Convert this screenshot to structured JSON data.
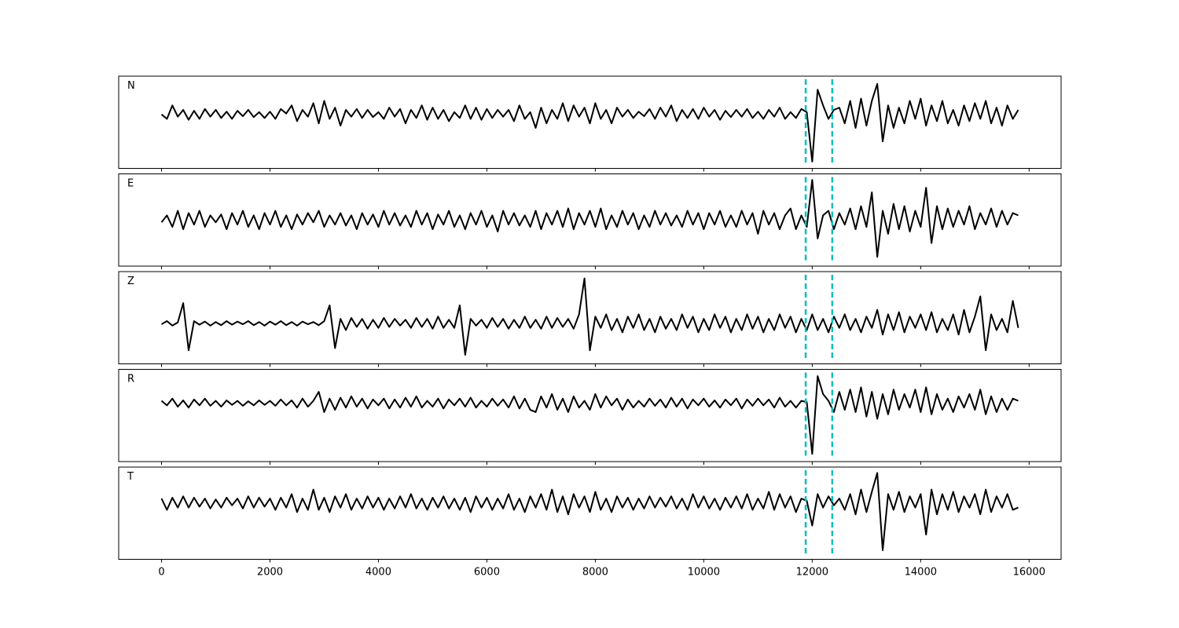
{
  "chart_data": {
    "type": "line",
    "subplots": true,
    "x": [
      0,
      100,
      200,
      300,
      400,
      500,
      600,
      700,
      800,
      900,
      1000,
      1100,
      1200,
      1300,
      1400,
      1500,
      1600,
      1700,
      1800,
      1900,
      2000,
      2100,
      2200,
      2300,
      2400,
      2500,
      2600,
      2700,
      2800,
      2900,
      3000,
      3100,
      3200,
      3300,
      3400,
      3500,
      3600,
      3700,
      3800,
      3900,
      4000,
      4100,
      4200,
      4300,
      4400,
      4500,
      4600,
      4700,
      4800,
      4900,
      5000,
      5100,
      5200,
      5300,
      5400,
      5500,
      5600,
      5700,
      5800,
      5900,
      6000,
      6100,
      6200,
      6300,
      6400,
      6500,
      6600,
      6700,
      6800,
      6900,
      7000,
      7100,
      7200,
      7300,
      7400,
      7500,
      7600,
      7700,
      7800,
      7900,
      8000,
      8100,
      8200,
      8300,
      8400,
      8500,
      8600,
      8700,
      8800,
      8900,
      9000,
      9100,
      9200,
      9300,
      9400,
      9500,
      9600,
      9700,
      9800,
      9900,
      10000,
      10100,
      10200,
      10300,
      10400,
      10500,
      10600,
      10700,
      10800,
      10900,
      11000,
      11100,
      11200,
      11300,
      11400,
      11500,
      11600,
      11700,
      11800,
      11900,
      12000,
      12100,
      12200,
      12300,
      12400,
      12500,
      12600,
      12700,
      12800,
      12900,
      13000,
      13100,
      13200,
      13300,
      13400,
      13500,
      13600,
      13700,
      13800,
      13900,
      14000,
      14100,
      14200,
      14300,
      14400,
      14500,
      14600,
      14700,
      14800,
      14900,
      15000,
      15100,
      15200,
      15300,
      15400,
      15500,
      15600,
      15700,
      15800
    ],
    "xlim": [
      -790,
      16590
    ],
    "xticks": [
      0,
      2000,
      4000,
      6000,
      8000,
      10000,
      12000,
      14000,
      16000
    ],
    "markers": [
      11880,
      12370
    ],
    "marker_color": "#00bfbf",
    "series": [
      {
        "name": "N",
        "color": "#000000",
        "ylim": [
          -1.2,
          0.85
        ],
        "values": [
          0,
          -0.1,
          0.2,
          -0.05,
          0.1,
          -0.12,
          0.08,
          -0.1,
          0.12,
          -0.05,
          0.1,
          -0.08,
          0.06,
          -0.1,
          0.08,
          -0.04,
          0.1,
          -0.06,
          0.05,
          -0.08,
          0.06,
          -0.1,
          0.12,
          0.02,
          0.2,
          -0.15,
          0.1,
          -0.05,
          0.25,
          -0.2,
          0.3,
          -0.1,
          0.15,
          -0.25,
          0.1,
          -0.05,
          0.12,
          -0.08,
          0.1,
          -0.06,
          0.05,
          -0.1,
          0.15,
          -0.05,
          0.12,
          -0.2,
          0.1,
          -0.08,
          0.2,
          -0.12,
          0.15,
          -0.1,
          0.1,
          -0.15,
          0.05,
          -0.08,
          0.2,
          -0.1,
          0.15,
          -0.12,
          0.12,
          -0.08,
          0.1,
          -0.05,
          0.1,
          -0.15,
          0.2,
          -0.1,
          0.05,
          -0.3,
          0.15,
          -0.2,
          0.1,
          -0.1,
          0.25,
          -0.15,
          0.2,
          -0.05,
          0.15,
          -0.2,
          0.25,
          -0.1,
          0.1,
          -0.2,
          0.15,
          -0.05,
          0.1,
          -0.08,
          0.06,
          -0.04,
          0.12,
          -0.1,
          0.15,
          -0.05,
          0.2,
          -0.15,
          0.1,
          -0.08,
          0.12,
          -0.1,
          0.15,
          -0.05,
          0.1,
          -0.12,
          0.08,
          -0.06,
          0.1,
          -0.05,
          0.12,
          -0.08,
          0.06,
          -0.1,
          0.1,
          -0.05,
          0.15,
          -0.1,
          0.05,
          -0.08,
          0.12,
          0.05,
          -1.05,
          0.55,
          0.2,
          -0.1,
          0.1,
          0.15,
          -0.2,
          0.3,
          -0.3,
          0.35,
          -0.25,
          0.3,
          0.68,
          -0.6,
          0.2,
          -0.3,
          0.15,
          -0.2,
          0.3,
          -0.1,
          0.35,
          -0.25,
          0.2,
          -0.15,
          0.3,
          -0.2,
          0.1,
          -0.25,
          0.2,
          -0.15,
          0.25,
          -0.1,
          0.3,
          -0.2,
          0.15,
          -0.25,
          0.2,
          -0.1,
          0.1
        ]
      },
      {
        "name": "E",
        "color": "#000000",
        "ylim": [
          -1.0,
          1.0
        ],
        "values": [
          -0.05,
          0.1,
          -0.15,
          0.2,
          -0.2,
          0.15,
          -0.1,
          0.2,
          -0.15,
          0.1,
          -0.05,
          0.12,
          -0.2,
          0.15,
          -0.1,
          0.2,
          -0.15,
          0.1,
          -0.2,
          0.15,
          -0.1,
          0.2,
          -0.15,
          0.1,
          -0.2,
          0.12,
          -0.1,
          0.15,
          -0.05,
          0.2,
          -0.15,
          0.1,
          -0.1,
          0.15,
          -0.12,
          0.1,
          -0.2,
          0.15,
          -0.1,
          0.12,
          -0.15,
          0.2,
          -0.1,
          0.15,
          -0.12,
          0.1,
          -0.15,
          0.2,
          -0.1,
          0.15,
          -0.2,
          0.12,
          -0.1,
          0.2,
          -0.15,
          0.1,
          -0.2,
          0.15,
          -0.1,
          0.2,
          -0.15,
          0.1,
          -0.25,
          0.2,
          -0.1,
          0.15,
          -0.12,
          0.1,
          -0.15,
          0.2,
          -0.2,
          0.15,
          -0.1,
          0.2,
          -0.15,
          0.25,
          -0.2,
          0.15,
          -0.1,
          0.2,
          -0.15,
          0.25,
          -0.2,
          0.1,
          -0.15,
          0.2,
          -0.1,
          0.15,
          -0.2,
          0.1,
          -0.15,
          0.2,
          -0.1,
          0.15,
          -0.12,
          0.1,
          -0.15,
          0.2,
          -0.1,
          0.15,
          -0.2,
          0.15,
          -0.1,
          0.2,
          -0.15,
          0.1,
          -0.15,
          0.2,
          -0.1,
          0.15,
          -0.3,
          0.2,
          -0.1,
          0.15,
          -0.2,
          0.1,
          0.25,
          -0.2,
          0.1,
          -0.15,
          0.87,
          -0.4,
          0.1,
          0.2,
          -0.2,
          0.15,
          -0.1,
          0.25,
          -0.2,
          0.3,
          -0.15,
          0.6,
          -0.8,
          0.2,
          -0.3,
          0.35,
          -0.2,
          0.3,
          -0.25,
          0.2,
          -0.15,
          0.7,
          -0.5,
          0.3,
          -0.2,
          0.25,
          -0.15,
          0.2,
          -0.1,
          0.3,
          -0.2,
          0.15,
          -0.1,
          0.25,
          -0.15,
          0.2,
          -0.1,
          0.15,
          0.1
        ]
      },
      {
        "name": "Z",
        "color": "#000000",
        "ylim": [
          -0.9,
          1.15
        ],
        "values": [
          -0.02,
          0.05,
          -0.05,
          0.02,
          0.45,
          -0.6,
          0.05,
          -0.03,
          0.04,
          -0.05,
          0.03,
          -0.04,
          0.05,
          -0.03,
          0.04,
          -0.02,
          0.05,
          -0.04,
          0.03,
          -0.05,
          0.04,
          -0.03,
          0.05,
          -0.04,
          0.03,
          -0.05,
          0.04,
          -0.02,
          0.03,
          -0.04,
          0.05,
          0.4,
          -0.55,
          0.1,
          -0.15,
          0.12,
          -0.08,
          0.1,
          -0.12,
          0.08,
          -0.1,
          0.12,
          -0.08,
          0.1,
          -0.05,
          0.08,
          -0.1,
          0.12,
          -0.08,
          0.1,
          -0.12,
          0.15,
          -0.1,
          0.08,
          -0.1,
          0.4,
          -0.7,
          0.1,
          -0.05,
          0.08,
          -0.1,
          0.12,
          -0.08,
          0.1,
          -0.12,
          0.08,
          -0.1,
          0.15,
          -0.1,
          0.08,
          -0.12,
          0.15,
          -0.1,
          0.12,
          -0.08,
          0.1,
          -0.12,
          0.2,
          1.0,
          -0.6,
          0.15,
          -0.1,
          0.2,
          -0.15,
          0.1,
          -0.2,
          0.15,
          -0.1,
          0.2,
          -0.15,
          0.1,
          -0.2,
          0.15,
          -0.12,
          0.1,
          -0.15,
          0.2,
          -0.1,
          0.15,
          -0.2,
          0.1,
          -0.15,
          0.2,
          -0.1,
          0.15,
          -0.2,
          0.1,
          -0.15,
          0.2,
          -0.12,
          0.15,
          -0.2,
          0.1,
          -0.15,
          0.2,
          -0.1,
          0.15,
          -0.2,
          0.1,
          -0.15,
          0.2,
          -0.15,
          0.1,
          -0.2,
          0.15,
          -0.1,
          0.2,
          -0.15,
          0.1,
          -0.2,
          0.15,
          -0.1,
          0.3,
          -0.25,
          0.2,
          -0.15,
          0.25,
          -0.2,
          0.15,
          -0.1,
          0.2,
          -0.15,
          0.25,
          -0.2,
          0.1,
          -0.15,
          0.2,
          -0.25,
          0.3,
          -0.2,
          0.15,
          0.6,
          -0.6,
          0.2,
          -0.15,
          0.1,
          -0.2,
          0.5,
          -0.1
        ]
      },
      {
        "name": "R",
        "color": "#000000",
        "ylim": [
          -1.3,
          0.75
        ],
        "values": [
          0.05,
          -0.05,
          0.1,
          -0.08,
          0.06,
          -0.1,
          0.08,
          -0.05,
          0.1,
          -0.06,
          0.05,
          -0.08,
          0.06,
          -0.04,
          0.05,
          -0.06,
          0.04,
          -0.05,
          0.06,
          -0.04,
          0.05,
          -0.06,
          0.08,
          -0.05,
          0.06,
          -0.1,
          0.1,
          -0.08,
          0.05,
          0.25,
          -0.2,
          0.1,
          -0.15,
          0.12,
          -0.1,
          0.15,
          -0.08,
          0.1,
          -0.12,
          0.08,
          -0.05,
          0.1,
          -0.12,
          0.08,
          -0.1,
          0.12,
          -0.08,
          0.15,
          -0.1,
          0.05,
          -0.08,
          0.1,
          -0.12,
          0.08,
          -0.05,
          0.1,
          -0.08,
          0.12,
          -0.1,
          0.05,
          -0.08,
          0.1,
          -0.06,
          0.08,
          -0.1,
          0.15,
          -0.12,
          0.1,
          -0.15,
          -0.2,
          0.15,
          -0.1,
          0.2,
          -0.15,
          0.1,
          -0.2,
          0.15,
          -0.1,
          0.05,
          -0.15,
          0.2,
          -0.1,
          0.15,
          -0.05,
          0.1,
          -0.15,
          0.08,
          -0.1,
          0.05,
          -0.08,
          0.1,
          -0.06,
          0.08,
          -0.1,
          0.12,
          -0.08,
          0.1,
          -0.12,
          0.08,
          -0.05,
          0.1,
          -0.08,
          0.06,
          -0.1,
          0.08,
          -0.05,
          0.1,
          -0.12,
          0.08,
          -0.06,
          0.1,
          -0.05,
          0.08,
          -0.1,
          0.12,
          -0.08,
          0.05,
          -0.1,
          0.05,
          0.02,
          -1.13,
          0.6,
          0.2,
          0.05,
          -0.2,
          0.25,
          -0.15,
          0.3,
          -0.2,
          0.35,
          -0.3,
          0.25,
          -0.35,
          0.2,
          -0.25,
          0.3,
          -0.15,
          0.2,
          -0.1,
          0.3,
          -0.2,
          0.35,
          -0.25,
          0.2,
          -0.15,
          0.1,
          -0.2,
          0.15,
          -0.1,
          0.2,
          -0.15,
          0.3,
          -0.25,
          0.15,
          -0.2,
          0.1,
          -0.15,
          0.1,
          0.05
        ]
      },
      {
        "name": "T",
        "color": "#000000",
        "ylim": [
          -1.25,
          0.8
        ],
        "values": [
          0.1,
          -0.15,
          0.12,
          -0.1,
          0.15,
          -0.1,
          0.12,
          -0.08,
          0.1,
          -0.12,
          0.08,
          -0.1,
          0.12,
          -0.05,
          0.1,
          -0.12,
          0.15,
          -0.1,
          0.12,
          -0.08,
          0.1,
          -0.15,
          0.12,
          -0.1,
          0.2,
          -0.2,
          0.1,
          -0.15,
          0.3,
          -0.15,
          0.12,
          -0.2,
          0.15,
          -0.1,
          0.2,
          -0.15,
          0.1,
          -0.12,
          0.15,
          -0.1,
          0.12,
          -0.15,
          0.1,
          -0.12,
          0.15,
          -0.1,
          0.2,
          -0.12,
          0.1,
          -0.15,
          0.12,
          -0.1,
          0.15,
          -0.12,
          0.1,
          -0.15,
          0.12,
          -0.2,
          0.15,
          -0.1,
          0.12,
          -0.15,
          0.1,
          -0.12,
          0.2,
          -0.15,
          0.1,
          -0.2,
          0.15,
          -0.1,
          0.2,
          -0.15,
          0.3,
          -0.2,
          0.15,
          -0.25,
          0.2,
          -0.1,
          0.15,
          -0.2,
          0.25,
          -0.15,
          0.1,
          -0.2,
          0.15,
          -0.1,
          0.12,
          -0.15,
          0.1,
          -0.12,
          0.15,
          -0.1,
          0.12,
          -0.08,
          0.15,
          -0.12,
          0.1,
          -0.15,
          0.2,
          -0.1,
          0.15,
          -0.12,
          0.1,
          -0.15,
          0.12,
          -0.1,
          0.15,
          -0.12,
          0.2,
          -0.15,
          0.1,
          -0.12,
          0.25,
          -0.15,
          0.2,
          -0.1,
          0.15,
          -0.2,
          0.1,
          0.05,
          -0.5,
          0.2,
          -0.1,
          0.15,
          -0.05,
          0.1,
          -0.15,
          0.2,
          -0.25,
          0.3,
          -0.2,
          0.25,
          0.67,
          -1.05,
          0.2,
          -0.15,
          0.25,
          -0.2,
          0.15,
          -0.1,
          0.2,
          -0.7,
          0.3,
          -0.25,
          0.2,
          -0.15,
          0.25,
          -0.2,
          0.15,
          -0.1,
          0.2,
          -0.25,
          0.3,
          -0.2,
          0.15,
          -0.1,
          0.2,
          -0.15,
          -0.1
        ]
      }
    ]
  }
}
